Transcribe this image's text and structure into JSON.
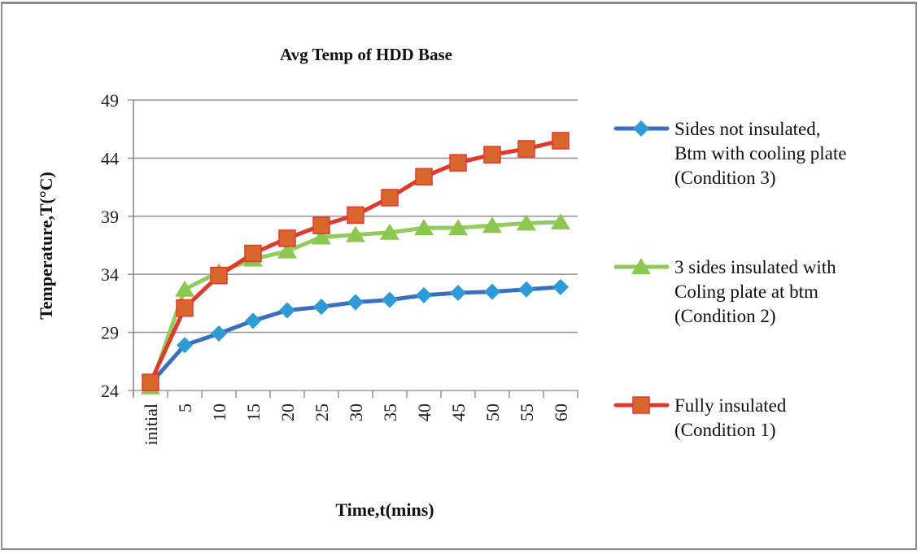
{
  "chart_data": {
    "type": "line",
    "title": "Avg Temp of HDD Base",
    "xlabel": "Time,t(mins)",
    "ylabel": "Temperature,T(°C)",
    "ylim": [
      24,
      49
    ],
    "yticks": [
      "24",
      "29",
      "34",
      "39",
      "44",
      "49"
    ],
    "grid": true,
    "legend_position": "right",
    "categories": [
      "initial",
      "5",
      "10",
      "15",
      "20",
      "25",
      "30",
      "35",
      "40",
      "45",
      "50",
      "55",
      "60"
    ],
    "series": [
      {
        "name": "Sides not insulated, Btm with cooling plate (Condition 3)",
        "legend_lines": [
          "Sides not insulated,",
          "Btm with cooling plate",
          "(Condition 3)"
        ],
        "color": "#3a6fc0",
        "marker_color": "#2e9bd6",
        "marker": "diamond",
        "values": [
          24.6,
          27.9,
          28.9,
          30.0,
          30.9,
          31.2,
          31.6,
          31.8,
          32.2,
          32.4,
          32.5,
          32.7,
          32.9
        ]
      },
      {
        "name": "3 sides insulated with Coling plate at btm (Condition 2)",
        "legend_lines": [
          "3 sides insulated with",
          "Coling plate at btm",
          "(Condition 2)"
        ],
        "color": "#92cc5c",
        "marker_color": "#8cc84f",
        "marker": "triangle",
        "values": [
          24.3,
          32.7,
          34.2,
          35.3,
          36.0,
          37.2,
          37.4,
          37.6,
          38.0,
          38.0,
          38.2,
          38.4,
          38.5
        ]
      },
      {
        "name": "Fully insulated (Condition 1)",
        "legend_lines": [
          "Fully insulated",
          "(Condition 1)"
        ],
        "color": "#e03a2e",
        "marker_color": "#d9662c",
        "marker": "square",
        "values": [
          24.7,
          31.1,
          33.9,
          35.8,
          37.1,
          38.2,
          39.1,
          40.6,
          42.4,
          43.6,
          44.3,
          44.8,
          45.5
        ]
      }
    ]
  }
}
